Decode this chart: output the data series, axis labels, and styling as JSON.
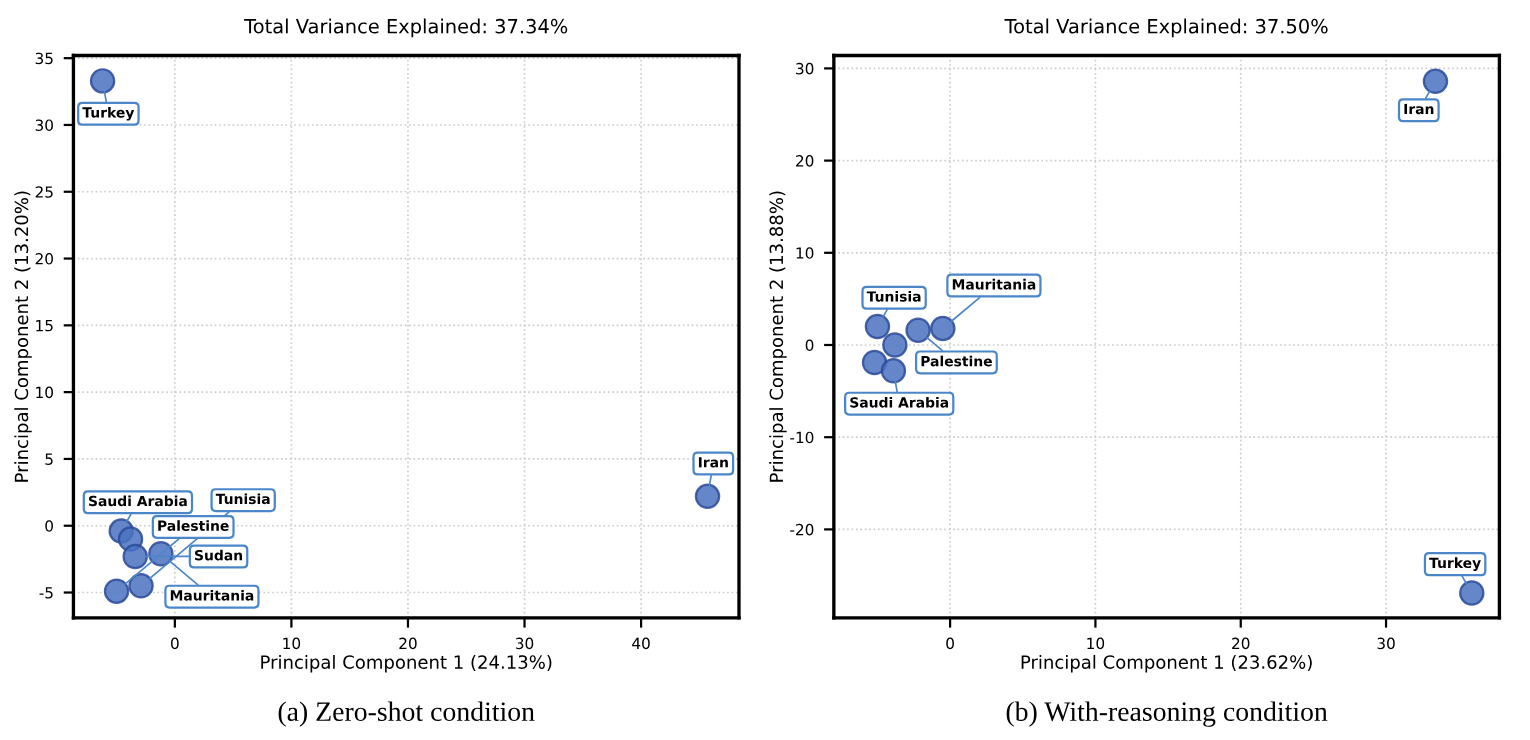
{
  "chart_data": [
    {
      "type": "scatter",
      "title": "Total Variance Explained: 37.34%",
      "xlabel": "Principal Component 1 (24.13%)",
      "ylabel": "Principal Component 2 (13.20%)",
      "x": [
        -6.2,
        45.7,
        -4.5,
        -4.6,
        -3.8,
        -3.4,
        -1.2,
        -2.9,
        -5.0
      ],
      "values": [
        33.3,
        2.2,
        null,
        -0.4,
        -1.0,
        -2.3,
        -2.1,
        -4.5,
        -4.9
      ],
      "color": "#4a72c0",
      "marker": "circle",
      "grid": true,
      "xlim": [
        -8.7,
        48.4
      ],
      "ylim": [
        -6.9,
        35.2
      ],
      "xticks": [
        0,
        10,
        20,
        30,
        40
      ],
      "yticks": [
        -5,
        0,
        5,
        10,
        15,
        20,
        25,
        30,
        35
      ],
      "annotations": [
        {
          "text": "Turkey",
          "x": -6.2,
          "y": 33.3
        },
        {
          "text": "Iran",
          "x": 45.7,
          "y": 2.2
        },
        {
          "text": "Saudi Arabia",
          "x": -4.6,
          "y": -0.4
        },
        {
          "text": "Mauritania",
          "x": -1.2,
          "y": -2.1
        },
        {
          "text": "Sudan",
          "x": -3.4,
          "y": -2.3
        },
        {
          "text": "Tunisia",
          "x": -2.9,
          "y": -4.5
        },
        {
          "text": "Palestine",
          "x": -5.0,
          "y": -4.9
        },
        "(a) Zero-shot condition"
      ]
    },
    {
      "type": "scatter",
      "title": "Total Variance Explained: 37.50%",
      "xlabel": "Principal Component 1 (23.62%)",
      "ylabel": "Principal Component 2 (13.88%)",
      "x": [
        33.4,
        35.9,
        -5.0,
        -2.2,
        -0.5,
        -3.8,
        -5.2,
        -3.9
      ],
      "values": [
        28.6,
        -26.9,
        2.0,
        1.6,
        1.8,
        0.0,
        -1.9,
        -2.8
      ],
      "color": "#4a72c0",
      "marker": "circle",
      "grid": true,
      "xlim": [
        -8.0,
        37.8
      ],
      "ylim": [
        -29.6,
        31.4
      ],
      "xticks": [
        0,
        10,
        20,
        30
      ],
      "yticks": [
        -20,
        -10,
        0,
        10,
        20,
        30
      ],
      "annotations": [
        {
          "text": "Iran",
          "x": 33.4,
          "y": 28.6
        },
        {
          "text": "Turkey",
          "x": 35.9,
          "y": -26.9
        },
        {
          "text": "Tunisia",
          "x": -5.0,
          "y": 2.0
        },
        {
          "text": "Palestine",
          "x": -2.2,
          "y": 1.6
        },
        {
          "text": "Mauritania",
          "x": -0.5,
          "y": 1.8
        },
        {
          "text": "Saudi Arabia",
          "x": -3.9,
          "y": -2.8
        },
        "(b) With-reasoning condition"
      ]
    }
  ]
}
